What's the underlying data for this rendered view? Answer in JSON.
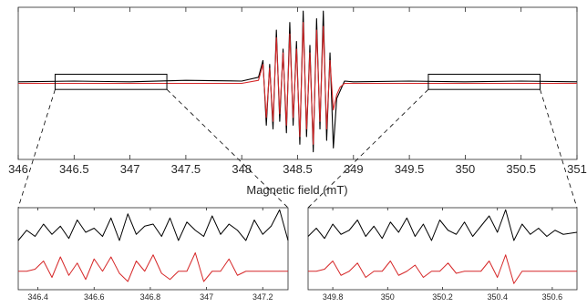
{
  "chart_data": [
    {
      "id": "main",
      "type": "line",
      "title": "",
      "xlabel": "Magnetic field (mT)",
      "ylabel": "",
      "xlim": [
        346,
        351
      ],
      "ylim": [
        -1.0,
        1.0
      ],
      "xticks": [
        346,
        346.5,
        347,
        347.5,
        348,
        348.5,
        349,
        349.5,
        350,
        350.5,
        351
      ],
      "xtick_labels": [
        "346",
        "346.5",
        "347",
        "347.5",
        "348",
        "348.5",
        "349",
        "349.5",
        "350",
        "350.5",
        "351"
      ],
      "grid": false,
      "legend": "none",
      "zoom_boxes": [
        {
          "x": [
            346.33,
            347.33
          ],
          "y": [
            -0.08,
            0.12
          ]
        },
        {
          "x": [
            349.67,
            350.67
          ],
          "y": [
            -0.08,
            0.12
          ]
        }
      ],
      "series": [
        {
          "role": "experimental",
          "color": "#000000",
          "x": [
            346.0,
            346.5,
            347.0,
            347.5,
            348.0,
            348.15,
            348.19,
            348.22,
            348.25,
            348.28,
            348.31,
            348.34,
            348.37,
            348.4,
            348.43,
            348.46,
            348.49,
            348.52,
            348.55,
            348.58,
            348.61,
            348.64,
            348.67,
            348.7,
            348.73,
            348.76,
            348.79,
            348.82,
            348.85,
            348.88,
            348.92,
            349.0,
            349.5,
            350.0,
            350.5,
            351.0
          ],
          "y": [
            0.02,
            0.03,
            0.02,
            0.04,
            0.03,
            0.08,
            0.3,
            -0.55,
            0.25,
            -0.6,
            0.7,
            -0.5,
            0.45,
            -0.65,
            0.8,
            -0.55,
            0.55,
            -0.8,
            0.95,
            -0.7,
            0.5,
            -0.9,
            0.85,
            -0.6,
            0.95,
            -0.75,
            0.4,
            -0.85,
            -0.2,
            -0.1,
            0.03,
            0.02,
            0.03,
            0.02,
            0.03,
            0.02
          ]
        },
        {
          "role": "simulated",
          "color": "#d62728",
          "x": [
            346.0,
            346.5,
            347.0,
            347.5,
            348.0,
            348.15,
            348.19,
            348.22,
            348.25,
            348.28,
            348.31,
            348.34,
            348.37,
            348.4,
            348.43,
            348.46,
            348.49,
            348.52,
            348.55,
            348.58,
            348.61,
            348.64,
            348.67,
            348.7,
            348.73,
            348.76,
            348.79,
            348.82,
            348.85,
            348.88,
            348.92,
            349.0,
            349.5,
            350.0,
            350.5,
            351.0
          ],
          "y": [
            0.0,
            0.0,
            0.0,
            0.0,
            0.0,
            0.04,
            0.25,
            -0.45,
            0.2,
            -0.5,
            0.6,
            -0.4,
            0.4,
            -0.55,
            0.65,
            -0.45,
            0.45,
            -0.7,
            0.8,
            -0.6,
            0.4,
            -0.8,
            0.7,
            -0.5,
            0.75,
            -0.6,
            0.3,
            -0.35,
            -0.15,
            -0.05,
            0.0,
            0.0,
            0.0,
            0.0,
            0.0,
            0.0
          ]
        }
      ]
    },
    {
      "id": "inset-left",
      "type": "line",
      "xlabel": "",
      "ylabel": "",
      "xlim": [
        346.33,
        347.29
      ],
      "ylim": [
        -1.0,
        1.0
      ],
      "xticks": [
        346.4,
        346.6,
        346.8,
        347,
        347.2
      ],
      "xtick_labels": [
        "346.4",
        "346.6",
        "346.8",
        "347",
        "347.2"
      ],
      "legend": "none",
      "series": [
        {
          "role": "experimental",
          "color": "#000000",
          "x": [
            346.33,
            346.36,
            346.39,
            346.42,
            346.45,
            346.48,
            346.51,
            346.54,
            346.57,
            346.6,
            346.63,
            346.66,
            346.69,
            346.72,
            346.75,
            346.78,
            346.81,
            346.84,
            346.87,
            346.9,
            346.93,
            346.96,
            346.99,
            347.02,
            347.05,
            347.08,
            347.11,
            347.14,
            347.17,
            347.2,
            347.23,
            347.26,
            347.29
          ],
          "y": [
            0.2,
            0.45,
            0.3,
            0.6,
            0.35,
            0.55,
            0.25,
            0.7,
            0.4,
            0.5,
            0.3,
            0.75,
            0.2,
            0.85,
            0.35,
            0.55,
            0.6,
            0.3,
            0.75,
            0.2,
            0.65,
            0.45,
            0.3,
            0.8,
            0.35,
            0.6,
            0.45,
            0.2,
            0.7,
            0.35,
            0.55,
            0.95,
            0.2
          ]
        },
        {
          "role": "simulated",
          "color": "#d62728",
          "x": [
            346.33,
            346.36,
            346.39,
            346.42,
            346.45,
            346.48,
            346.51,
            346.54,
            346.57,
            346.6,
            346.63,
            346.66,
            346.69,
            346.72,
            346.75,
            346.78,
            346.81,
            346.84,
            346.87,
            346.9,
            346.93,
            346.96,
            346.99,
            347.02,
            347.05,
            347.08,
            347.11,
            347.14,
            347.17,
            347.2,
            347.23,
            347.26,
            347.29
          ],
          "y": [
            -0.55,
            -0.55,
            -0.5,
            -0.3,
            -0.7,
            -0.2,
            -0.65,
            -0.35,
            -0.75,
            -0.25,
            -0.55,
            -0.2,
            -0.6,
            -0.8,
            -0.3,
            -0.55,
            -0.15,
            -0.6,
            -0.75,
            -0.55,
            -0.55,
            -0.1,
            -0.8,
            -0.55,
            -0.55,
            -0.25,
            -0.65,
            -0.55,
            -0.55,
            -0.55,
            -0.55,
            -0.55,
            -0.55
          ]
        }
      ]
    },
    {
      "id": "inset-right",
      "type": "line",
      "xlabel": "",
      "ylabel": "",
      "xlim": [
        349.71,
        350.69
      ],
      "ylim": [
        -1.0,
        1.0
      ],
      "xticks": [
        349.8,
        350,
        350.2,
        350.4,
        350.6
      ],
      "xtick_labels": [
        "349.8",
        "350",
        "350.2",
        "350.4",
        "350.6"
      ],
      "legend": "none",
      "series": [
        {
          "role": "experimental",
          "color": "#000000",
          "x": [
            349.71,
            349.74,
            349.77,
            349.8,
            349.83,
            349.86,
            349.89,
            349.92,
            349.95,
            349.98,
            350.01,
            350.04,
            350.07,
            350.1,
            350.13,
            350.16,
            350.19,
            350.22,
            350.25,
            350.28,
            350.31,
            350.34,
            350.37,
            350.4,
            350.43,
            350.46,
            350.49,
            350.52,
            350.55,
            350.58,
            350.61,
            350.64,
            350.69
          ],
          "y": [
            0.3,
            0.5,
            0.25,
            0.6,
            0.35,
            0.45,
            0.7,
            0.3,
            0.55,
            0.25,
            0.65,
            0.4,
            0.75,
            0.3,
            0.6,
            0.2,
            0.7,
            0.45,
            0.35,
            0.65,
            0.3,
            0.55,
            0.8,
            0.4,
            0.95,
            0.2,
            0.6,
            0.35,
            0.5,
            0.3,
            0.45,
            0.35,
            0.4
          ]
        },
        {
          "role": "simulated",
          "color": "#d62728",
          "x": [
            349.71,
            349.74,
            349.77,
            349.8,
            349.83,
            349.86,
            349.89,
            349.92,
            349.95,
            349.98,
            350.01,
            350.04,
            350.07,
            350.1,
            350.13,
            350.16,
            350.19,
            350.22,
            350.25,
            350.28,
            350.31,
            350.34,
            350.37,
            350.4,
            350.43,
            350.46,
            350.49,
            350.52,
            350.55,
            350.58,
            350.61,
            350.64,
            350.69
          ],
          "y": [
            -0.55,
            -0.55,
            -0.5,
            -0.3,
            -0.65,
            -0.55,
            -0.35,
            -0.7,
            -0.55,
            -0.55,
            -0.3,
            -0.65,
            -0.55,
            -0.4,
            -0.7,
            -0.55,
            -0.55,
            -0.35,
            -0.6,
            -0.55,
            -0.55,
            -0.55,
            -0.3,
            -0.7,
            -0.15,
            -0.85,
            -0.55,
            -0.55,
            -0.55,
            -0.55,
            -0.55,
            -0.55,
            -0.55
          ]
        }
      ]
    }
  ]
}
